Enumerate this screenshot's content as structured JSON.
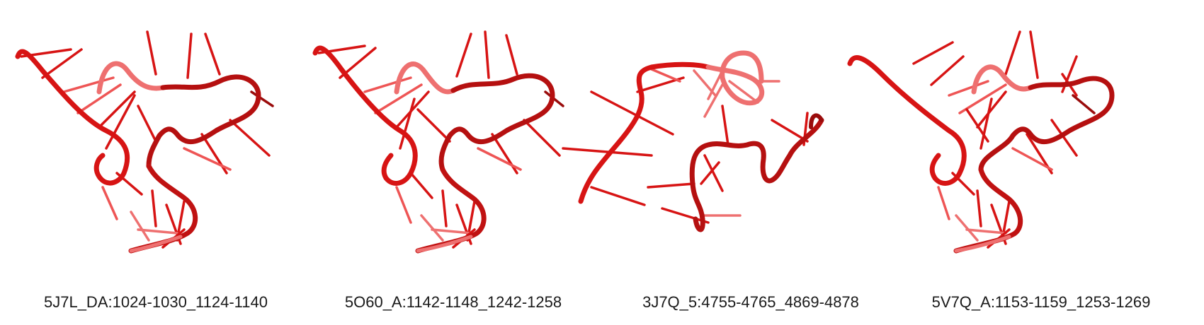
{
  "panels": [
    {
      "label": "5J7L_DA:1024-1030_1124-1140"
    },
    {
      "label": "5O60_A:1142-1148_1242-1258"
    },
    {
      "label": "3J7Q_5:4755-4765_4869-4878"
    },
    {
      "label": "5V7Q_A:1153-1159_1253-1269"
    }
  ],
  "colors": {
    "rna_main": "#d71414",
    "rna_dark": "#9a0c0c",
    "rna_light": "#ee7070",
    "background": "#ffffff",
    "caption_text": "#1a1a1a"
  }
}
